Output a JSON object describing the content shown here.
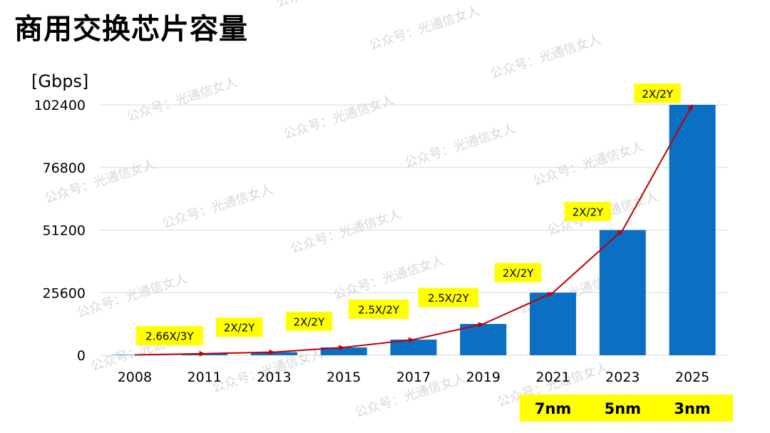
{
  "page": {
    "title": "商用交换芯片容量"
  },
  "watermark": {
    "text": "公众号：光通信女人"
  },
  "chart_data": {
    "type": "bar",
    "title": "",
    "ylabel": "[Gbps]",
    "xlabel": "",
    "ylim": [
      0,
      102400
    ],
    "yticks": [
      0,
      25600,
      51200,
      76800,
      102400
    ],
    "grid": true,
    "categories": [
      "2008",
      "2011",
      "2013",
      "2015",
      "2017",
      "2019",
      "2021",
      "2023",
      "2025"
    ],
    "series": [
      {
        "values": [
          160,
          640,
          1280,
          3200,
          6400,
          12800,
          25600,
          51200,
          102400
        ]
      }
    ],
    "trend_line": {
      "color": "#c00000",
      "values": [
        160,
        640,
        1280,
        3200,
        6400,
        12800,
        25600,
        51200,
        102400
      ]
    },
    "growth_labels": [
      "2.66X/3Y",
      "2X/2Y",
      "2X/2Y",
      "2.5X/2Y",
      "2.5X/2Y",
      "2X/2Y",
      "2X/2Y",
      "2X/2Y"
    ],
    "process_nodes": [
      {
        "category": "2021",
        "label": "7nm"
      },
      {
        "category": "2023",
        "label": "5nm"
      },
      {
        "category": "2025",
        "label": "3nm"
      }
    ],
    "colors": {
      "bar": "#0b6fc4",
      "grid": "#d9d9d9",
      "highlight": "#ffff00"
    }
  }
}
